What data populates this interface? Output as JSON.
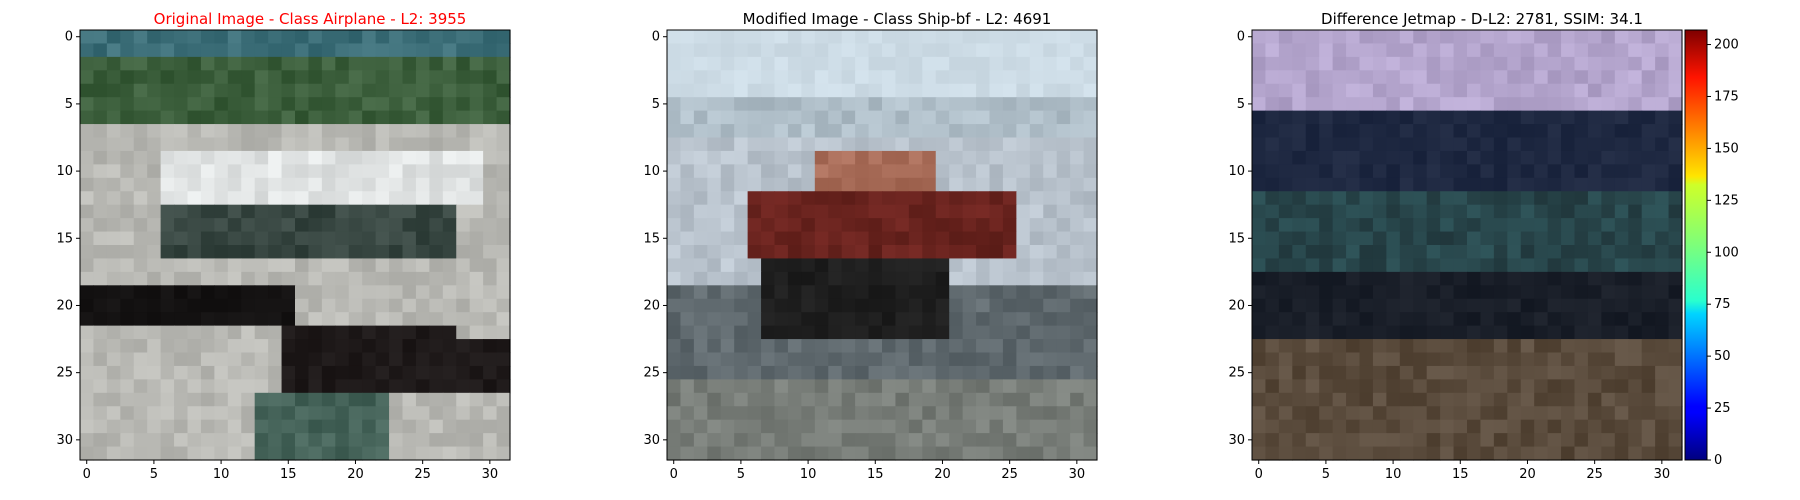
{
  "panels": [
    {
      "title": "Original Image - Class Airplane - L2: 3955",
      "title_color": "#ff0000",
      "x_ticks": [
        "0",
        "5",
        "10",
        "15",
        "20",
        "25",
        "30"
      ],
      "y_ticks": [
        "0",
        "5",
        "10",
        "15",
        "20",
        "25",
        "30"
      ],
      "image_description_colors": [
        "#3f6f7a",
        "#2f5a2f",
        "#b9b9b0",
        "#f2f2f2",
        "#2a2a2a",
        "#1a0e0e",
        "#c8c6c0"
      ]
    },
    {
      "title": "Modified Image - Class Ship-bf - L2: 4691",
      "title_color": "#000000",
      "x_ticks": [
        "0",
        "5",
        "10",
        "15",
        "20",
        "25",
        "30"
      ],
      "y_ticks": [
        "0",
        "5",
        "10",
        "15",
        "20",
        "25",
        "30"
      ],
      "image_description_colors": [
        "#cfdde6",
        "#b5c2cc",
        "#5a1e1a",
        "#8a3a2f",
        "#1b1b1b",
        "#9aa2a8"
      ]
    },
    {
      "title": "Difference Jetmap - D-L2: 2781, SSIM: 34.1",
      "title_color": "#000000",
      "x_ticks": [
        "0",
        "5",
        "10",
        "15",
        "20",
        "25",
        "30"
      ],
      "y_ticks": [
        "0",
        "5",
        "10",
        "15",
        "20",
        "25",
        "30"
      ],
      "image_description_colors": [
        "#b9a4cf",
        "#1e2a44",
        "#0f1520",
        "#3a5a5a",
        "#5a4a3a",
        "#4a3a2a"
      ]
    }
  ],
  "colorbar": {
    "ticks": [
      "0",
      "25",
      "50",
      "75",
      "100",
      "125",
      "150",
      "175",
      "200"
    ],
    "max": 207
  }
}
